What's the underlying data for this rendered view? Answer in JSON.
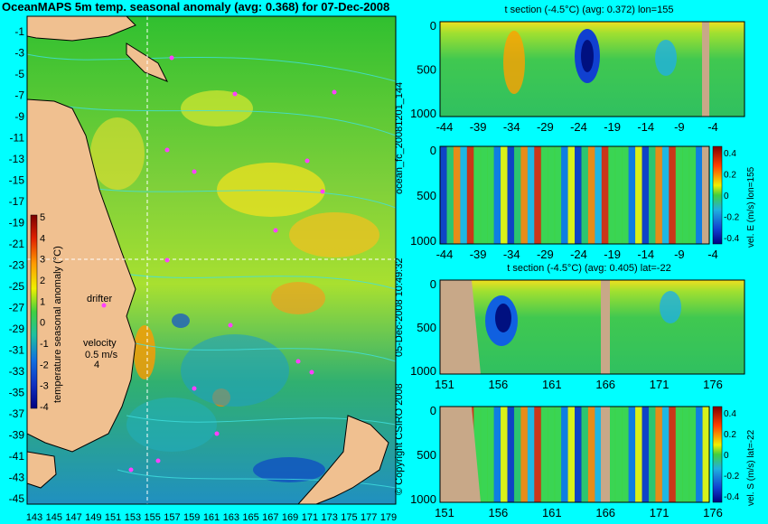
{
  "map": {
    "title": "OceanMAPS 5m temp. seasonal anomaly (avg: 0.368) for 07-Dec-2008",
    "lat_ticks": [
      "-1",
      "-3",
      "-5",
      "-7",
      "-9",
      "-11",
      "-13",
      "-15",
      "-17",
      "-19",
      "-21",
      "-23",
      "-25",
      "-27",
      "-29",
      "-31",
      "-33",
      "-35",
      "-37",
      "-39",
      "-41",
      "-43",
      "-45"
    ],
    "lon_ticks": [
      "143",
      "145",
      "147",
      "149",
      "151",
      "153",
      "155",
      "157",
      "159",
      "161",
      "163",
      "165",
      "167",
      "169",
      "171",
      "173",
      "175",
      "177",
      "179"
    ],
    "colorbar": {
      "label": "temperature seasonal anomaly (°C)",
      "ticks": [
        "5",
        "4",
        "3",
        "2",
        "1",
        "0",
        "-1",
        "-2",
        "-3",
        "-4"
      ]
    },
    "labels": {
      "drifter": "drifter",
      "velocity": "velocity",
      "velocity_value": "0.5 m/s",
      "velocity_scale": "4"
    },
    "colors": {
      "land": "#f0c090",
      "contour": "#40e0e0",
      "drifter": "#ff40ff"
    }
  },
  "panels": [
    {
      "title": "t section (-4.5°C) (avg: 0.372) lon=155",
      "x_ticks": [
        "-44",
        "-39",
        "-34",
        "-29",
        "-24",
        "-19",
        "-14",
        "-9",
        "-4"
      ],
      "y_ticks": [
        "0",
        "500",
        "1000"
      ]
    },
    {
      "title": "",
      "x_ticks": [
        "-44",
        "-39",
        "-34",
        "-29",
        "-24",
        "-19",
        "-14",
        "-9",
        "-4"
      ],
      "y_ticks": [
        "0",
        "500",
        "1000"
      ],
      "colorbar_label": "vel. E (m/s) lon=155",
      "colorbar_ticks": [
        "0.4",
        "0.2",
        "0",
        "-0.2",
        "-0.4"
      ]
    },
    {
      "title": "t section (-4.5°C) (avg: 0.405) lat=-22",
      "x_ticks": [
        "151",
        "156",
        "161",
        "166",
        "171",
        "176"
      ],
      "y_ticks": [
        "0",
        "500",
        "1000"
      ]
    },
    {
      "title": "",
      "x_ticks": [
        "151",
        "156",
        "161",
        "166",
        "171",
        "176"
      ],
      "y_ticks": [
        "0",
        "500",
        "1000"
      ],
      "colorbar_label": "vel. S (m/s) lat=-22",
      "colorbar_ticks": [
        "0.4",
        "0.2",
        "0",
        "-0.2",
        "-0.4"
      ]
    }
  ],
  "side_text": {
    "run_id": "ocean_fc_20081201_144",
    "timestamp": "05-Dec-2008 10:49:32",
    "copyright": "© Copyright CSIRO 2008"
  }
}
